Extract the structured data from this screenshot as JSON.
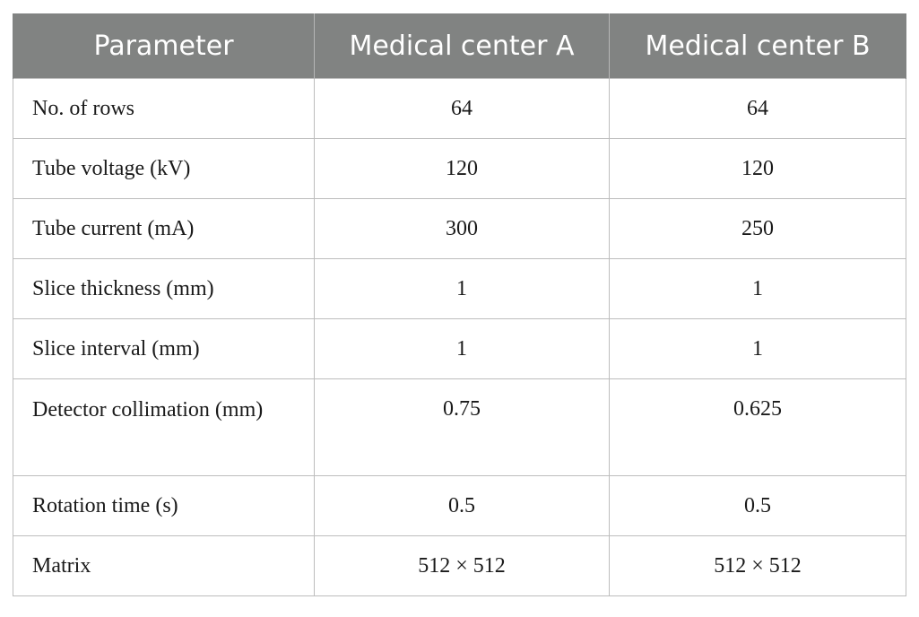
{
  "table": {
    "headers": [
      "Parameter",
      "Medical center A",
      "Medical center B"
    ],
    "rows": [
      {
        "parameter": "No. of rows",
        "center_a": "64",
        "center_b": "64"
      },
      {
        "parameter": "Tube voltage (kV)",
        "center_a": "120",
        "center_b": "120"
      },
      {
        "parameter": "Tube current (mA)",
        "center_a": "300",
        "center_b": "250"
      },
      {
        "parameter": "Slice thickness (mm)",
        "center_a": "1",
        "center_b": "1"
      },
      {
        "parameter": "Slice interval (mm)",
        "center_a": "1",
        "center_b": "1"
      },
      {
        "parameter": "Detector collimation (mm)",
        "center_a": "0.75",
        "center_b": "0.625"
      },
      {
        "parameter": "Rotation time (s)",
        "center_a": "0.5",
        "center_b": "0.5"
      },
      {
        "parameter": "Matrix",
        "center_a": "512 × 512",
        "center_b": "512 × 512"
      }
    ]
  },
  "colors": {
    "header_bg": "#818382",
    "header_text": "#ffffff",
    "grid": "#bdbdbd"
  }
}
